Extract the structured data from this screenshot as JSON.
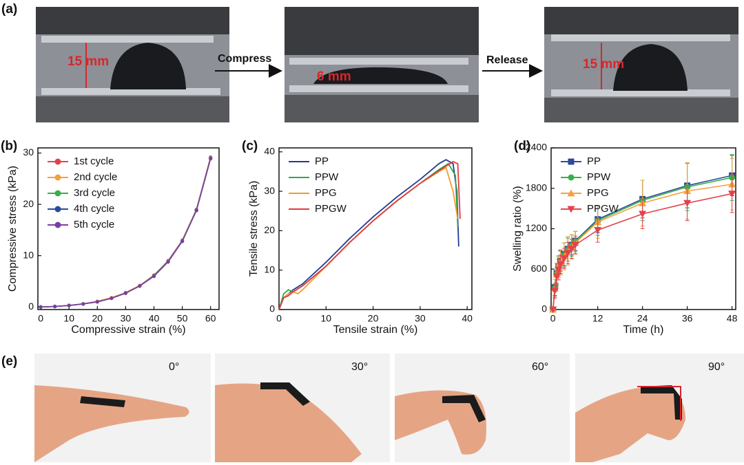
{
  "panel_a": {
    "label": "(a)",
    "height_1": "15 mm",
    "step_1": "Compress",
    "height_2": "6 mm",
    "step_2": "Release",
    "height_3": "15 mm"
  },
  "chart_data": [
    {
      "type": "line",
      "label": "(b)",
      "x_label": "Compressive strain (%)",
      "y_label": "Compressive stress (kPa)",
      "xlim": [
        -1,
        63
      ],
      "ylim": [
        -0.5,
        31
      ],
      "xticks": [
        0,
        10,
        20,
        30,
        40,
        50,
        60
      ],
      "yticks": [
        0,
        10,
        20,
        30
      ],
      "legend": "upper left",
      "x": [
        0,
        5,
        10,
        15,
        20,
        25,
        30,
        35,
        40,
        45,
        50,
        55,
        60
      ],
      "series": [
        {
          "name": "1st cycle",
          "color": "#e3424a",
          "marker": "circle",
          "values": [
            0,
            0.1,
            0.3,
            0.6,
            1.1,
            1.8,
            2.8,
            4.2,
            6.2,
            9.0,
            13.0,
            19.0,
            29.2
          ]
        },
        {
          "name": "2nd cycle",
          "color": "#f4a13c",
          "marker": "circle",
          "values": [
            0,
            0.1,
            0.3,
            0.6,
            1.1,
            1.8,
            2.8,
            4.2,
            6.1,
            8.9,
            12.9,
            18.9,
            29.0
          ]
        },
        {
          "name": "3rd cycle",
          "color": "#38b04a",
          "marker": "circle",
          "values": [
            0,
            0.1,
            0.3,
            0.6,
            1.0,
            1.7,
            2.7,
            4.1,
            6.1,
            8.9,
            12.9,
            18.9,
            29.0
          ]
        },
        {
          "name": "4th cycle",
          "color": "#2a4a9a",
          "marker": "circle",
          "values": [
            0,
            0.1,
            0.3,
            0.6,
            1.0,
            1.7,
            2.7,
            4.1,
            6.0,
            8.8,
            12.8,
            18.8,
            28.9
          ]
        },
        {
          "name": "5th cycle",
          "color": "#7b3f9f",
          "marker": "circle",
          "values": [
            0,
            0.1,
            0.3,
            0.6,
            1.0,
            1.7,
            2.7,
            4.1,
            6.0,
            8.8,
            12.8,
            18.8,
            28.9
          ]
        }
      ]
    },
    {
      "type": "line",
      "label": "(c)",
      "x_label": "Tensile strain (%)",
      "y_label": "Tensile stress (kPa)",
      "xlim": [
        0,
        41
      ],
      "ylim": [
        0,
        41
      ],
      "xticks": [
        0,
        10,
        20,
        30,
        40
      ],
      "yticks": [
        0,
        10,
        20,
        30,
        40
      ],
      "legend": "upper left",
      "series": [
        {
          "name": "PP",
          "color": "#1f3a93",
          "x": [
            0,
            1,
            2,
            3,
            5,
            10,
            15,
            20,
            25,
            30,
            34,
            35.5,
            37,
            37.8,
            38.2
          ],
          "values": [
            0,
            3,
            4,
            5,
            6.5,
            12,
            18,
            23.5,
            28.5,
            33,
            37,
            38,
            37,
            30,
            16
          ]
        },
        {
          "name": "PPW",
          "color": "#2fa84a",
          "x": [
            0,
            1,
            2,
            3,
            5,
            10,
            15,
            20,
            25,
            30,
            34,
            36,
            37.5,
            38
          ],
          "values": [
            0,
            4,
            5,
            4.5,
            6,
            11,
            17,
            22.5,
            27.5,
            32,
            35.5,
            37,
            34,
            21
          ]
        },
        {
          "name": "PPG",
          "color": "#f39a2c",
          "x": [
            0,
            1,
            2,
            3,
            4,
            5,
            10,
            15,
            20,
            25,
            30,
            34,
            35.5,
            37,
            38
          ],
          "values": [
            0,
            3,
            4,
            4.5,
            4,
            5,
            11,
            17,
            22.5,
            27.5,
            32,
            35,
            36,
            30,
            23
          ]
        },
        {
          "name": "PPGW",
          "color": "#e2393f",
          "x": [
            0,
            1,
            2,
            3,
            5,
            10,
            15,
            20,
            25,
            30,
            35,
            37,
            38,
            38.5
          ],
          "values": [
            0,
            3,
            3.5,
            4.5,
            6,
            11,
            17,
            22.5,
            27.5,
            32,
            36,
            37.5,
            37,
            23
          ]
        }
      ]
    },
    {
      "type": "line",
      "label": "(d)",
      "x_label": "Time (h)",
      "y_label": "Swelling ratio (%)",
      "xlim": [
        -0.5,
        49
      ],
      "ylim": [
        0,
        2400
      ],
      "xticks": [
        0,
        12,
        24,
        36,
        48
      ],
      "yticks": [
        0,
        600,
        1200,
        1800,
        2400
      ],
      "legend": "upper left",
      "x": [
        0,
        0.5,
        1,
        1.5,
        2,
        3,
        4,
        5,
        6,
        12,
        24,
        36,
        48
      ],
      "series": [
        {
          "name": "PP",
          "color": "#2a4a9a",
          "marker": "square",
          "values": [
            0,
            330,
            540,
            640,
            720,
            820,
            900,
            960,
            1020,
            1340,
            1640,
            1840,
            1990
          ],
          "errors": [
            0,
            120,
            150,
            160,
            150,
            170,
            180,
            150,
            140,
            200,
            280,
            330,
            300
          ]
        },
        {
          "name": "PPW",
          "color": "#38b04a",
          "marker": "circle",
          "values": [
            0,
            320,
            530,
            630,
            710,
            810,
            890,
            950,
            1010,
            1320,
            1620,
            1820,
            1960
          ],
          "errors": [
            0,
            130,
            160,
            150,
            170,
            180,
            170,
            160,
            150,
            220,
            300,
            350,
            340
          ]
        },
        {
          "name": "PPG",
          "color": "#f4a13c",
          "marker": "triangle-up",
          "values": [
            0,
            310,
            520,
            620,
            700,
            790,
            870,
            930,
            990,
            1300,
            1580,
            1760,
            1860
          ],
          "errors": [
            0,
            140,
            170,
            180,
            190,
            200,
            210,
            180,
            170,
            240,
            340,
            420,
            380
          ]
        },
        {
          "name": "PPGW",
          "color": "#e3424a",
          "marker": "triangle-down",
          "values": [
            0,
            280,
            490,
            590,
            670,
            760,
            840,
            900,
            960,
            1180,
            1420,
            1580,
            1720
          ],
          "errors": [
            0,
            110,
            140,
            150,
            140,
            150,
            160,
            140,
            130,
            180,
            220,
            260,
            280
          ]
        }
      ]
    }
  ],
  "panel_e": {
    "label": "(e)",
    "angles": [
      "0°",
      "30°",
      "60°",
      "90°"
    ]
  }
}
